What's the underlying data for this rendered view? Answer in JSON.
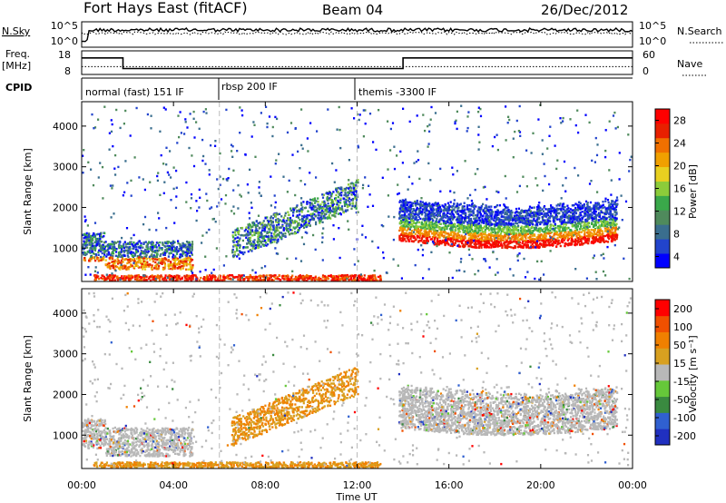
{
  "header": {
    "station": "Fort Hays East (fitACF)",
    "beam": "Beam 04",
    "date": "26/Dec/2012"
  },
  "top_panels": {
    "nsky_label": "N.Sky",
    "nsky_ticks": [
      "10^5",
      "10^0"
    ],
    "nsearch_label": "N.Search",
    "nsearch_ticks": [
      "10^5",
      "10^0"
    ],
    "freq_label": "Freq.",
    "freq_unit": "[MHz]",
    "freq_ticks": [
      "18",
      "8"
    ],
    "nave_label": "Nave",
    "nave_ticks": [
      "60",
      "0"
    ],
    "cpid_label": "CPID",
    "cpid_modes": [
      "normal (fast) 151 IF",
      "rbsp 200 IF",
      "themis -3300 IF"
    ]
  },
  "colorbars": {
    "power": {
      "label": "Power [dB]",
      "ticks": [
        "28",
        "24",
        "20",
        "16",
        "12",
        "8",
        "4"
      ],
      "colors": [
        "#0000ff",
        "#2244cc",
        "#3a6e8e",
        "#4f8a5c",
        "#3aa84a",
        "#8ccc3a",
        "#e8d020",
        "#f0a000",
        "#f07000",
        "#e82000",
        "#ff0000"
      ]
    },
    "velocity": {
      "label": "Velocity [m s⁻¹]",
      "ticks": [
        "200",
        "100",
        "50",
        "15",
        "-15",
        "-50",
        "-100",
        "-200"
      ],
      "colors": [
        "#2030c0",
        "#3060d0",
        "#3a8a40",
        "#66c83a",
        "#b8b8b8",
        "#d8a020",
        "#f08000",
        "#f05000",
        "#ff0000"
      ]
    }
  },
  "chart_data": {
    "type": "heatmap",
    "xlabel": "Time UT",
    "ylabel": "Slant Range [km]",
    "x_ticks": [
      "00:00",
      "04:00",
      "08:00",
      "12:00",
      "16:00",
      "20:00",
      "00:00"
    ],
    "y_ticks": [
      "1000",
      "2000",
      "3000",
      "4000"
    ],
    "xlim_hours": [
      0,
      24
    ],
    "ylim_km": [
      180,
      4600
    ],
    "mode_changes_hours": [
      6,
      12
    ],
    "freq_steps_mhz": [
      {
        "from": 0,
        "to": 1.8,
        "value": 15
      },
      {
        "from": 1.8,
        "to": 14,
        "value": 10.5
      },
      {
        "from": 14,
        "to": 24,
        "value": 15
      }
    ],
    "nave_level": 20
  }
}
